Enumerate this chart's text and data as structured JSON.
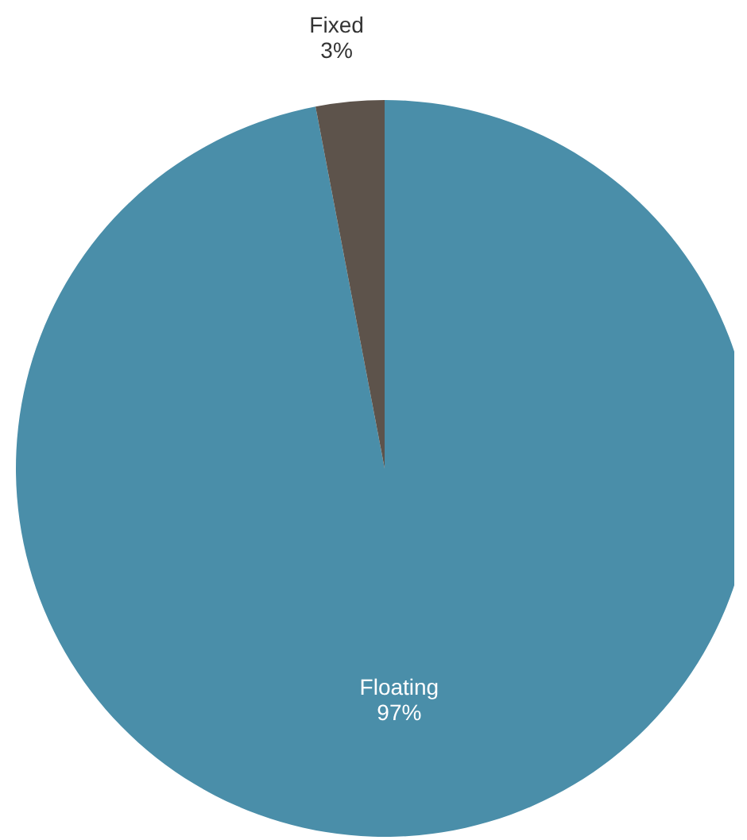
{
  "chart_data": {
    "type": "pie",
    "categories": [
      "Floating",
      "Fixed"
    ],
    "values": [
      97,
      3
    ],
    "colors": [
      "#4a8ea9",
      "#5d534b"
    ],
    "value_labels": [
      "97%",
      "3%"
    ],
    "legend": false
  }
}
